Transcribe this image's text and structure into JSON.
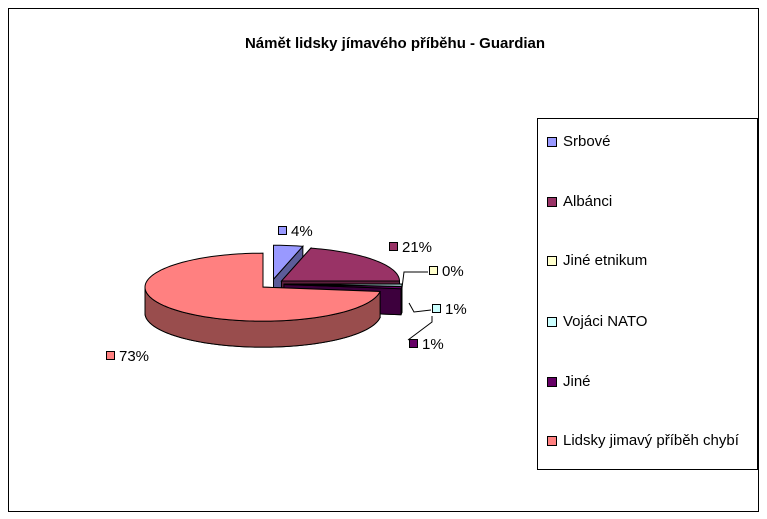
{
  "chart_data": {
    "type": "pie",
    "title": "Námět lidsky jímavého příběhu - Guardian",
    "categories": [
      "Srbové",
      "Albánci",
      "Jiné etnikum",
      "Vojáci NATO",
      "Jiné",
      "Lidsky jimavý příběh chybí"
    ],
    "values": [
      4,
      21,
      0,
      1,
      1,
      73
    ],
    "value_labels": [
      "4%",
      "21%",
      "0%",
      "1%",
      "1%",
      "73%"
    ],
    "colors": [
      "#9999ff",
      "#993366",
      "#ffffcc",
      "#ccffff",
      "#660066",
      "#ff8080"
    ],
    "legend": "right"
  }
}
